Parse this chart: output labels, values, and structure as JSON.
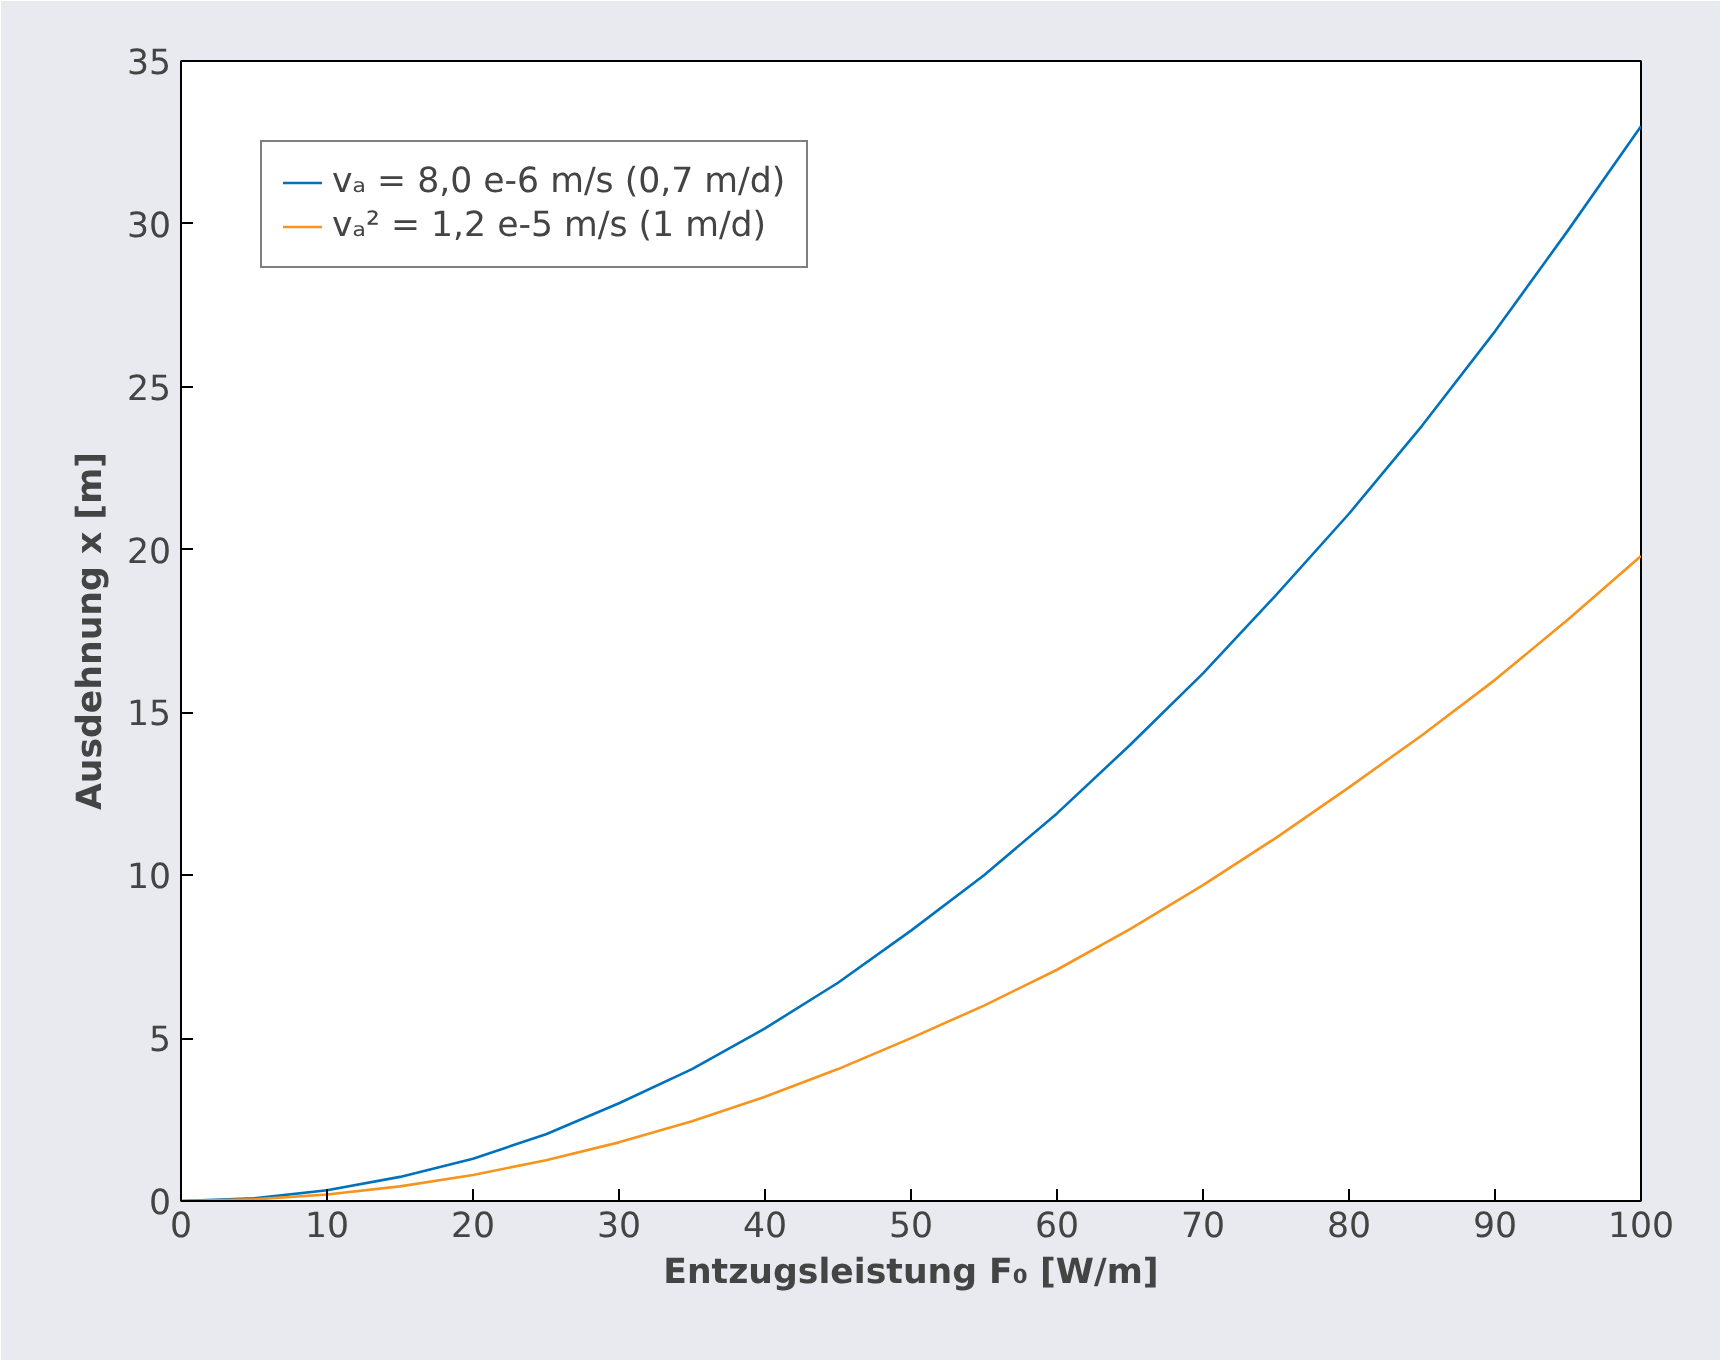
{
  "chart_data": {
    "type": "line",
    "xlabel": "Entzugsleistung F₀ [W/m]",
    "ylabel": "Ausdehnung x [m]",
    "x": [
      0,
      5,
      10,
      15,
      20,
      25,
      30,
      35,
      40,
      45,
      50,
      55,
      60,
      65,
      70,
      75,
      80,
      85,
      90,
      95,
      100
    ],
    "series": [
      {
        "name": "vₐ = 8,0 e-6 m/s (0,7 m/d)",
        "color": "#0072bd",
        "values": [
          0,
          0.08,
          0.33,
          0.74,
          1.3,
          2.05,
          3.0,
          4.05,
          5.3,
          6.7,
          8.3,
          10.0,
          11.9,
          14.0,
          16.2,
          18.6,
          21.1,
          23.8,
          26.7,
          29.8,
          33.0
        ]
      },
      {
        "name": "vₐ² = 1,2 e-5 m/s (1 m/d)",
        "color": "#f7941d",
        "values": [
          0,
          0.05,
          0.2,
          0.45,
          0.8,
          1.25,
          1.8,
          2.45,
          3.2,
          4.05,
          5.0,
          6.0,
          7.1,
          8.35,
          9.7,
          11.15,
          12.7,
          14.3,
          16.0,
          17.85,
          19.8
        ]
      }
    ],
    "xlim": [
      0,
      100
    ],
    "ylim": [
      0,
      35
    ],
    "xticks": [
      0,
      10,
      20,
      30,
      40,
      50,
      60,
      70,
      80,
      90,
      100
    ],
    "yticks": [
      0,
      5,
      10,
      15,
      20,
      25,
      30,
      35
    ],
    "grid": false,
    "legend": "top left",
    "marker": "none",
    "line_style": "solid"
  }
}
